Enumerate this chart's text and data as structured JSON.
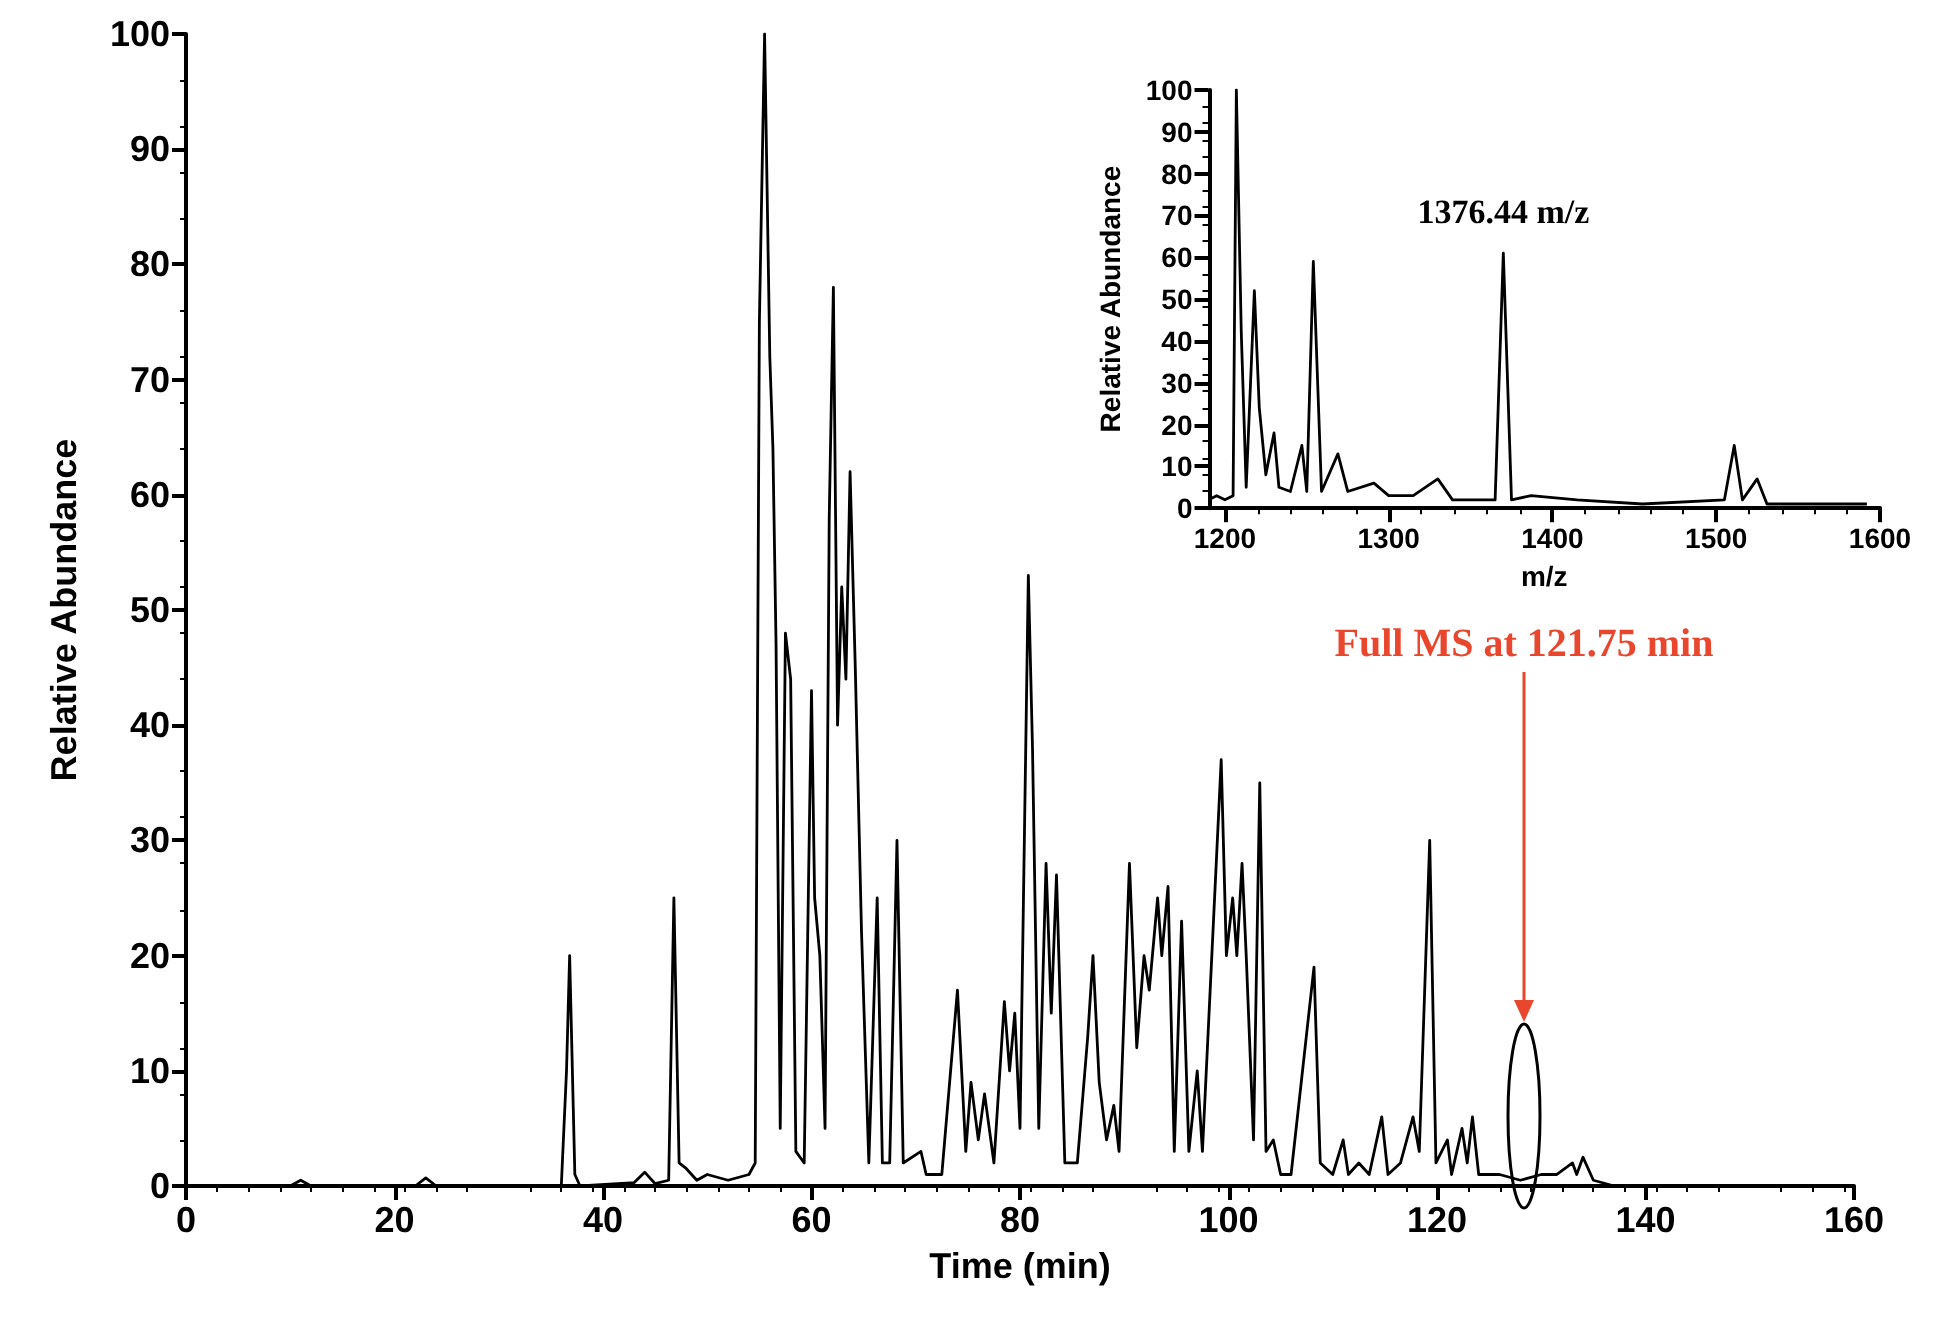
{
  "chart_data": [
    {
      "type": "line",
      "xlabel": "Time (min)",
      "ylabel": "Relative Abundance",
      "xlim": [
        0,
        160
      ],
      "xticks": [
        0,
        20,
        40,
        60,
        80,
        100,
        120,
        140,
        160
      ],
      "ylim": [
        0,
        100
      ],
      "yticks": [
        0,
        10,
        20,
        30,
        40,
        50,
        60,
        70,
        80,
        90,
        100
      ],
      "grid": false,
      "marker": "none",
      "line_style": "solid",
      "annotations": [
        "Full MS at 121.75 min"
      ],
      "series": [
        {
          "color": "#000000",
          "x": [
            0,
            10,
            11,
            12,
            22,
            23,
            24,
            36,
            36.5,
            36.8,
            37.3,
            37.8,
            43,
            44,
            45,
            46.3,
            46.8,
            47.3,
            48,
            49,
            50,
            52,
            54,
            54.6,
            55,
            55.5,
            56,
            56.3,
            56.6,
            57,
            57.5,
            58,
            58.5,
            59.3,
            60,
            60.3,
            60.8,
            61.3,
            61.7,
            62.1,
            62.5,
            62.9,
            63.3,
            63.7,
            64.2,
            64.8,
            65.5,
            66.3,
            66.8,
            67.5,
            68.2,
            68.8,
            70.5,
            71,
            72.5,
            74,
            74.8,
            75.3,
            76,
            76.6,
            77.5,
            78.5,
            79,
            79.5,
            80,
            80.8,
            81.2,
            81.8,
            82.5,
            83,
            83.5,
            84.3,
            85.5,
            86.5,
            87,
            87.6,
            88.3,
            89,
            89.5,
            90.5,
            91.2,
            91.9,
            92.4,
            93.2,
            93.6,
            94.2,
            94.8,
            95.5,
            96.2,
            97,
            97.5,
            99.3,
            99.8,
            100.4,
            100.8,
            101.3,
            101.7,
            102.4,
            103,
            103.6,
            104.3,
            105,
            106,
            108.2,
            108.8,
            110,
            111,
            111.5,
            112.5,
            113.5,
            114.7,
            115.3,
            116.5,
            117.7,
            118.3,
            119.3,
            119.9,
            121,
            121.4,
            122.4,
            122.9,
            123.4,
            124,
            126,
            128,
            130,
            131.5,
            133,
            133.4,
            134,
            135,
            137,
            160
          ],
          "values": [
            0,
            0,
            0.5,
            0,
            0,
            0.7,
            0,
            0,
            10,
            20,
            1,
            0,
            0.3,
            1.2,
            0.2,
            0.5,
            25,
            2,
            1.5,
            0.5,
            1,
            0.5,
            1,
            2,
            75,
            100,
            72,
            64,
            47,
            5,
            48,
            44,
            3,
            2,
            43,
            25,
            20,
            5,
            58,
            78,
            40,
            52,
            44,
            62,
            45,
            22,
            2,
            25,
            2,
            2,
            30,
            2,
            3,
            1,
            1,
            17,
            3,
            9,
            4,
            8,
            2,
            16,
            10,
            15,
            5,
            53,
            38,
            5,
            28,
            15,
            27,
            2,
            2,
            13,
            20,
            9,
            4,
            7,
            3,
            28,
            12,
            20,
            17,
            25,
            20,
            26,
            3,
            23,
            3,
            10,
            3,
            37,
            20,
            25,
            20,
            28,
            20,
            4,
            35,
            3,
            4,
            1,
            1,
            19,
            2,
            1,
            4,
            1,
            2,
            1,
            6,
            1,
            2,
            6,
            3,
            30,
            2,
            4,
            1,
            5,
            2,
            6,
            1,
            1,
            0.5,
            1,
            1,
            2,
            1,
            2.5,
            0.5,
            0,
            0
          ]
        }
      ]
    },
    {
      "type": "line",
      "xlabel": "m/z",
      "ylabel": "Relative Abundance",
      "xlim": [
        1190,
        1600
      ],
      "xticks": [
        1200,
        1300,
        1400,
        1500,
        1600
      ],
      "ylim": [
        0,
        100
      ],
      "yticks": [
        0,
        10,
        20,
        30,
        40,
        50,
        60,
        70,
        80,
        90,
        100
      ],
      "grid": false,
      "marker": "none",
      "line_style": "solid",
      "annotations": [
        {
          "text": "1376.44 m/z",
          "x": 1370,
          "y": 61
        }
      ],
      "series": [
        {
          "color": "#000000",
          "x": [
            1190,
            1195,
            1200,
            1205,
            1207,
            1210,
            1213,
            1218,
            1221,
            1225,
            1230,
            1233,
            1240,
            1247,
            1250,
            1254,
            1259,
            1269,
            1275,
            1291,
            1300,
            1315,
            1330,
            1339,
            1365,
            1370,
            1375,
            1387,
            1415,
            1455,
            1505,
            1511,
            1516,
            1525,
            1531,
            1560,
            1592
          ],
          "values": [
            2,
            3,
            2,
            3,
            100,
            42,
            5,
            52,
            24,
            8,
            18,
            5,
            4,
            15,
            4,
            59,
            4,
            13,
            4,
            6,
            3,
            3,
            7,
            2,
            2,
            61,
            2,
            3,
            2,
            1,
            2,
            15,
            2,
            7,
            1,
            1,
            1
          ]
        }
      ]
    }
  ]
}
